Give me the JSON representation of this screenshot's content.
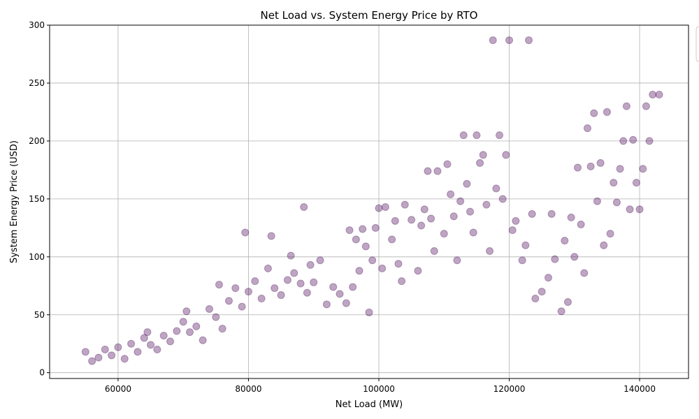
{
  "chart_data": {
    "type": "scatter",
    "title": "Net Load vs. System Energy Price by RTO",
    "xlabel": "Net Load (MW)",
    "ylabel": "System Energy Price (USD)",
    "xlim": [
      49500,
      147500
    ],
    "ylim": [
      -5,
      300
    ],
    "x_ticks": [
      60000,
      80000,
      100000,
      120000,
      140000
    ],
    "y_ticks": [
      0,
      50,
      100,
      150,
      200,
      250,
      300
    ],
    "grid": true,
    "legend": "top-right (partially visible, clipped)",
    "marker_color": "#440154",
    "marker_alpha": 0.35,
    "series": [
      {
        "points": [
          [
            55000,
            18
          ],
          [
            56000,
            10
          ],
          [
            57000,
            13
          ],
          [
            58000,
            20
          ],
          [
            59000,
            15
          ],
          [
            60000,
            22
          ],
          [
            61000,
            12
          ],
          [
            62000,
            25
          ],
          [
            63000,
            18
          ],
          [
            64000,
            30
          ],
          [
            64500,
            35
          ],
          [
            65000,
            24
          ],
          [
            66000,
            20
          ],
          [
            67000,
            32
          ],
          [
            68000,
            27
          ],
          [
            69000,
            36
          ],
          [
            70000,
            44
          ],
          [
            70500,
            53
          ],
          [
            71000,
            35
          ],
          [
            72000,
            40
          ],
          [
            73000,
            28
          ],
          [
            74000,
            55
          ],
          [
            75000,
            48
          ],
          [
            75500,
            76
          ],
          [
            76000,
            38
          ],
          [
            77000,
            62
          ],
          [
            78000,
            73
          ],
          [
            79000,
            57
          ],
          [
            79500,
            121
          ],
          [
            80000,
            70
          ],
          [
            81000,
            79
          ],
          [
            82000,
            64
          ],
          [
            83000,
            90
          ],
          [
            83500,
            118
          ],
          [
            84000,
            73
          ],
          [
            85000,
            67
          ],
          [
            86000,
            80
          ],
          [
            86500,
            101
          ],
          [
            87000,
            86
          ],
          [
            88000,
            77
          ],
          [
            88500,
            143
          ],
          [
            89000,
            69
          ],
          [
            89500,
            93
          ],
          [
            90000,
            78
          ],
          [
            91000,
            97
          ],
          [
            92000,
            59
          ],
          [
            93000,
            74
          ],
          [
            94000,
            68
          ],
          [
            95000,
            60
          ],
          [
            95500,
            123
          ],
          [
            96000,
            74
          ],
          [
            96500,
            115
          ],
          [
            97000,
            88
          ],
          [
            97500,
            124
          ],
          [
            98000,
            109
          ],
          [
            98500,
            52
          ],
          [
            99000,
            97
          ],
          [
            99500,
            125
          ],
          [
            100000,
            142
          ],
          [
            100500,
            90
          ],
          [
            101000,
            143
          ],
          [
            102000,
            115
          ],
          [
            102500,
            131
          ],
          [
            103000,
            94
          ],
          [
            103500,
            79
          ],
          [
            104000,
            145
          ],
          [
            105000,
            132
          ],
          [
            106000,
            88
          ],
          [
            106500,
            127
          ],
          [
            107000,
            141
          ],
          [
            107500,
            174
          ],
          [
            108000,
            133
          ],
          [
            108500,
            105
          ],
          [
            109000,
            174
          ],
          [
            110000,
            120
          ],
          [
            110500,
            180
          ],
          [
            111000,
            154
          ],
          [
            111500,
            135
          ],
          [
            112000,
            97
          ],
          [
            112500,
            148
          ],
          [
            113000,
            205
          ],
          [
            113500,
            163
          ],
          [
            114000,
            139
          ],
          [
            114500,
            121
          ],
          [
            115000,
            205
          ],
          [
            115500,
            181
          ],
          [
            116000,
            188
          ],
          [
            116500,
            145
          ],
          [
            117000,
            105
          ],
          [
            117500,
            287
          ],
          [
            118000,
            159
          ],
          [
            118500,
            205
          ],
          [
            119000,
            150
          ],
          [
            119500,
            188
          ],
          [
            120000,
            287
          ],
          [
            120500,
            123
          ],
          [
            121000,
            131
          ],
          [
            122000,
            97
          ],
          [
            122500,
            110
          ],
          [
            123000,
            287
          ],
          [
            123500,
            137
          ],
          [
            124000,
            64
          ],
          [
            125000,
            70
          ],
          [
            126000,
            82
          ],
          [
            126500,
            137
          ],
          [
            127000,
            98
          ],
          [
            128000,
            53
          ],
          [
            128500,
            114
          ],
          [
            129000,
            61
          ],
          [
            129500,
            134
          ],
          [
            130000,
            100
          ],
          [
            130500,
            177
          ],
          [
            131000,
            128
          ],
          [
            131500,
            86
          ],
          [
            132000,
            211
          ],
          [
            132500,
            178
          ],
          [
            133000,
            224
          ],
          [
            133500,
            148
          ],
          [
            134000,
            181
          ],
          [
            134500,
            110
          ],
          [
            135000,
            225
          ],
          [
            135500,
            120
          ],
          [
            136000,
            164
          ],
          [
            136500,
            147
          ],
          [
            137000,
            176
          ],
          [
            137500,
            200
          ],
          [
            138000,
            230
          ],
          [
            138500,
            141
          ],
          [
            139000,
            201
          ],
          [
            139500,
            164
          ],
          [
            140000,
            141
          ],
          [
            140500,
            176
          ],
          [
            141000,
            230
          ],
          [
            141500,
            200
          ],
          [
            142000,
            240
          ],
          [
            143000,
            240
          ]
        ]
      }
    ]
  }
}
